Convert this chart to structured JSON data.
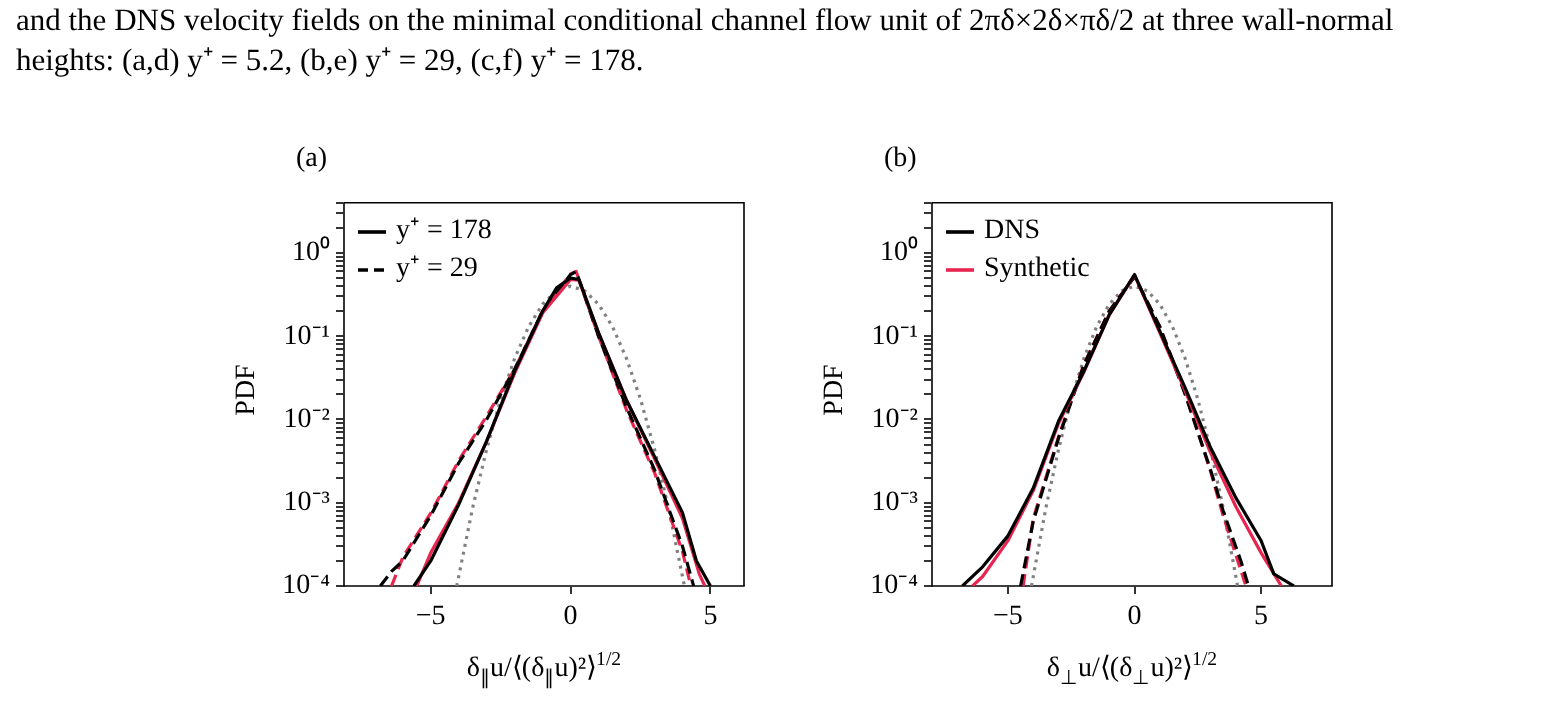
{
  "chart_data": [
    {
      "type": "line",
      "title": "(a)",
      "xlabel": "δ$_{∥}$u/⟨(δ$_{∥}$u)²⟩$^{1/2}$",
      "ylabel": "PDF",
      "annotations": [
        "and the DNS velocity fields on the minimal conditional channel flow unit of 2πδ×2δ×πδ/2 at three wall-normal heights: (a,d) y⁺ = 5.2, (b,e) y⁺ = 29, (c,f) y⁺ = 178."
      ],
      "log": "y",
      "legend": "top left",
      "xlim": [
        -8.1,
        6.2
      ],
      "ylim": [
        0.0001,
        4
      ],
      "xticks": [
        {
          "value": -5,
          "label": "−5"
        },
        {
          "value": 0,
          "label": "0"
        },
        {
          "value": 5,
          "label": "5"
        }
      ],
      "yticks": [
        {
          "value": 0.0001,
          "label": "10⁻⁴"
        },
        {
          "value": 0.0002,
          "label": null
        },
        {
          "value": 0.0003,
          "label": null
        },
        {
          "value": 0.0004,
          "label": null
        },
        {
          "value": 0.0005,
          "label": null
        },
        {
          "value": 0.0006,
          "label": null
        },
        {
          "value": 0.0007,
          "label": null
        },
        {
          "value": 0.0008,
          "label": null
        },
        {
          "value": 0.0009,
          "label": null
        },
        {
          "value": 0.001,
          "label": "10⁻³"
        },
        {
          "value": 0.002,
          "label": null
        },
        {
          "value": 0.003,
          "label": null
        },
        {
          "value": 0.004,
          "label": null
        },
        {
          "value": 0.005,
          "label": null
        },
        {
          "value": 0.006,
          "label": null
        },
        {
          "value": 0.007,
          "label": null
        },
        {
          "value": 0.008,
          "label": null
        },
        {
          "value": 0.009,
          "label": null
        },
        {
          "value": 0.01,
          "label": "10⁻²"
        },
        {
          "value": 0.02,
          "label": null
        },
        {
          "value": 0.03,
          "label": null
        },
        {
          "value": 0.04,
          "label": null
        },
        {
          "value": 0.05,
          "label": null
        },
        {
          "value": 0.06,
          "label": null
        },
        {
          "value": 0.07,
          "label": null
        },
        {
          "value": 0.08,
          "label": null
        },
        {
          "value": 0.09,
          "label": null
        },
        {
          "value": 0.1,
          "label": "10⁻¹"
        },
        {
          "value": 0.2,
          "label": null
        },
        {
          "value": 0.3,
          "label": null
        },
        {
          "value": 0.4,
          "label": null
        },
        {
          "value": 0.5,
          "label": null
        },
        {
          "value": 0.6,
          "label": null
        },
        {
          "value": 0.7,
          "label": null
        },
        {
          "value": 0.8,
          "label": null
        },
        {
          "value": 0.9,
          "label": null
        },
        {
          "value": 1,
          "label": "10⁰"
        },
        {
          "value": 2,
          "label": null
        },
        {
          "value": 3,
          "label": null
        },
        {
          "value": 4,
          "label": null
        }
      ],
      "series": [
        {
          "name": "y⁺ = 178",
          "color": "#000000",
          "line_style": "solid",
          "x": [
            -5.6,
            -5,
            -4,
            -3,
            -2,
            -1,
            -0.5,
            0,
            0.3,
            1,
            2,
            3,
            4,
            4.5,
            5
          ],
          "values": [
            0.0001,
            0.0002,
            0.00095,
            0.0055,
            0.038,
            0.2,
            0.38,
            0.5,
            0.48,
            0.11,
            0.017,
            0.0036,
            0.00076,
            0.0002,
            0.0001
          ]
        },
        {
          "color": "#e8254f",
          "line_style": "solid",
          "x": [
            -5.5,
            -5,
            -4,
            -3,
            -2,
            -1,
            0,
            0.3,
            1,
            2,
            3,
            4,
            4.6,
            4.8
          ],
          "values": [
            0.0001,
            0.00025,
            0.001,
            0.0055,
            0.036,
            0.19,
            0.48,
            0.47,
            0.11,
            0.017,
            0.0034,
            0.00065,
            0.00014,
            0.0001
          ]
        },
        {
          "name": "y⁺ = 29",
          "color": "#000000",
          "line_style": "dashed",
          "x": [
            -6.8,
            -6.4,
            -6,
            -5,
            -4,
            -3,
            -2,
            -1,
            0,
            0.2,
            1,
            2,
            3,
            4,
            4.4
          ],
          "values": [
            0.0001,
            0.00015,
            0.0002,
            0.0007,
            0.003,
            0.01,
            0.04,
            0.2,
            0.55,
            0.6,
            0.1,
            0.014,
            0.0025,
            0.0003,
            0.0001
          ]
        },
        {
          "color": "#e8254f",
          "line_style": "dashed",
          "x": [
            -6.4,
            -6,
            -5,
            -4,
            -3,
            -2,
            -1,
            0,
            0.2,
            1,
            2,
            3,
            4,
            4.3
          ],
          "values": [
            0.0001,
            0.00022,
            0.00075,
            0.0032,
            0.011,
            0.04,
            0.2,
            0.56,
            0.6,
            0.1,
            0.013,
            0.0023,
            0.00026,
            0.0001
          ]
        },
        {
          "color": "#808080",
          "line_style": "dotted",
          "x": [
            -4.07,
            -3.5,
            -3,
            -2.5,
            -2,
            -1.5,
            -1,
            -0.5,
            0,
            0.5,
            1,
            1.5,
            2,
            2.5,
            3,
            3.5,
            4.07
          ],
          "values": [
            0.0001,
            0.00087,
            0.0044,
            0.0175,
            0.054,
            0.13,
            0.242,
            0.352,
            0.399,
            0.352,
            0.242,
            0.13,
            0.054,
            0.0175,
            0.0044,
            0.00087,
            0.0001
          ]
        }
      ]
    },
    {
      "type": "line",
      "title": "(b)",
      "xlabel": "δ$_{⊥}$u/⟨(δ$_{⊥}$u)²⟩$^{1/2}$",
      "ylabel": "PDF",
      "log": "y",
      "legend": "top left",
      "xlim": [
        -8,
        7.8
      ],
      "ylim": [
        0.0001,
        4
      ],
      "xticks": [
        {
          "value": -5,
          "label": "−5"
        },
        {
          "value": 0,
          "label": "0"
        },
        {
          "value": 5,
          "label": "5"
        }
      ],
      "yticks": [
        {
          "value": 0.0001,
          "label": "10⁻⁴"
        },
        {
          "value": 0.0002,
          "label": null
        },
        {
          "value": 0.0003,
          "label": null
        },
        {
          "value": 0.0004,
          "label": null
        },
        {
          "value": 0.0005,
          "label": null
        },
        {
          "value": 0.0006,
          "label": null
        },
        {
          "value": 0.0007,
          "label": null
        },
        {
          "value": 0.0008,
          "label": null
        },
        {
          "value": 0.0009,
          "label": null
        },
        {
          "value": 0.001,
          "label": "10⁻³"
        },
        {
          "value": 0.002,
          "label": null
        },
        {
          "value": 0.003,
          "label": null
        },
        {
          "value": 0.004,
          "label": null
        },
        {
          "value": 0.005,
          "label": null
        },
        {
          "value": 0.006,
          "label": null
        },
        {
          "value": 0.007,
          "label": null
        },
        {
          "value": 0.008,
          "label": null
        },
        {
          "value": 0.009,
          "label": null
        },
        {
          "value": 0.01,
          "label": "10⁻²"
        },
        {
          "value": 0.02,
          "label": null
        },
        {
          "value": 0.03,
          "label": null
        },
        {
          "value": 0.04,
          "label": null
        },
        {
          "value": 0.05,
          "label": null
        },
        {
          "value": 0.06,
          "label": null
        },
        {
          "value": 0.07,
          "label": null
        },
        {
          "value": 0.08,
          "label": null
        },
        {
          "value": 0.09,
          "label": null
        },
        {
          "value": 0.1,
          "label": "10⁻¹"
        },
        {
          "value": 0.2,
          "label": null
        },
        {
          "value": 0.3,
          "label": null
        },
        {
          "value": 0.4,
          "label": null
        },
        {
          "value": 0.5,
          "label": null
        },
        {
          "value": 0.6,
          "label": null
        },
        {
          "value": 0.7,
          "label": null
        },
        {
          "value": 0.8,
          "label": null
        },
        {
          "value": 0.9,
          "label": null
        },
        {
          "value": 1,
          "label": "10⁰"
        },
        {
          "value": 2,
          "label": null
        },
        {
          "value": 3,
          "label": null
        },
        {
          "value": 4,
          "label": null
        }
      ],
      "series": [
        {
          "name": "DNS",
          "color": "#000000",
          "line_style": "solid",
          "x": [
            -6.8,
            -6,
            -5,
            -4,
            -3,
            -2,
            -1,
            0,
            1,
            2,
            3,
            4,
            5,
            5.5,
            6.3
          ],
          "values": [
            0.0001,
            0.00017,
            0.0004,
            0.0015,
            0.0096,
            0.038,
            0.18,
            0.55,
            0.115,
            0.024,
            0.0046,
            0.00115,
            0.00035,
            0.00014,
            0.0001
          ]
        },
        {
          "name": "Synthetic",
          "color": "#e8254f",
          "line_style": "solid",
          "x": [
            -6.4,
            -6,
            -5,
            -4,
            -3,
            -2,
            -1,
            0,
            1,
            2,
            3,
            4,
            5,
            5.8
          ],
          "values": [
            0.0001,
            0.00013,
            0.00035,
            0.0014,
            0.009,
            0.037,
            0.18,
            0.54,
            0.11,
            0.022,
            0.004,
            0.0009,
            0.00025,
            0.0001
          ]
        },
        {
          "color": "#000000",
          "line_style": "dashed",
          "x": [
            -4.5,
            -4,
            -3,
            -2,
            -1,
            0,
            1,
            2,
            3,
            3.5,
            4.2,
            4.5
          ],
          "values": [
            0.0001,
            0.0006,
            0.006,
            0.045,
            0.2,
            0.52,
            0.13,
            0.02,
            0.0025,
            0.0008,
            0.0002,
            0.0001
          ]
        },
        {
          "color": "#e8254f",
          "line_style": "dashed",
          "x": [
            -4.4,
            -4,
            -3,
            -2,
            -1,
            0,
            1,
            2,
            3,
            3.5,
            4.4
          ],
          "values": [
            0.0001,
            0.00065,
            0.0062,
            0.046,
            0.2,
            0.52,
            0.13,
            0.021,
            0.0024,
            0.0007,
            0.0001
          ]
        },
        {
          "color": "#808080",
          "line_style": "dotted",
          "x": [
            -4.07,
            -3.5,
            -3,
            -2.5,
            -2,
            -1.5,
            -1,
            -0.5,
            0,
            0.5,
            1,
            1.5,
            2,
            2.5,
            3,
            3.5,
            4.07
          ],
          "values": [
            0.0001,
            0.00087,
            0.0044,
            0.0175,
            0.054,
            0.13,
            0.242,
            0.352,
            0.399,
            0.352,
            0.242,
            0.13,
            0.054,
            0.0175,
            0.0044,
            0.00087,
            0.0001
          ]
        }
      ]
    }
  ]
}
